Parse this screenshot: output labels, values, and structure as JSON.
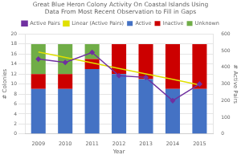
{
  "chart_data": {
    "type": "bar",
    "title": [
      "Great Blue Heron Colony Activity On Coastal Islands Using",
      "Data From Most Recent Observation to Fill in Gaps"
    ],
    "categories": [
      "2009",
      "2010",
      "2011",
      "2012",
      "2013",
      "2014",
      "2015"
    ],
    "series": [
      {
        "name": "Active",
        "type": "bar",
        "color": "#4472c4",
        "values": [
          9,
          9,
          13,
          12,
          11,
          9,
          9
        ]
      },
      {
        "name": "Inactive",
        "type": "bar",
        "color": "#cc0000",
        "values": [
          3,
          3,
          2,
          6,
          7,
          9,
          9
        ]
      },
      {
        "name": "Unknown",
        "type": "bar",
        "color": "#70ad47",
        "values": [
          6,
          6,
          3,
          0,
          0,
          0,
          0
        ]
      },
      {
        "name": "Active Pairs",
        "type": "line",
        "axis": "y2",
        "color": "#7030a0",
        "marker": "diamond",
        "line_style": "solid",
        "values": [
          450,
          430,
          490,
          350,
          340,
          200,
          300
        ]
      },
      {
        "name": "Linear (Active Pairs)",
        "type": "line",
        "axis": "y2",
        "color": "#e0e000",
        "marker": "none",
        "line_style": "solid",
        "values": [
          493,
          460,
          427,
          394,
          361,
          328,
          295
        ]
      }
    ],
    "stacked": true,
    "xlabel": "Year",
    "ylabel": "# Colonies",
    "y2label": "# Active Pairs",
    "ylim": [
      0,
      20
    ],
    "yticks": [
      0,
      2,
      4,
      6,
      8,
      10,
      12,
      14,
      16,
      18,
      20
    ],
    "y2lim": [
      0,
      600
    ],
    "y2ticks": [
      0,
      100,
      200,
      300,
      400,
      500,
      600
    ],
    "grid": true,
    "legend": "top"
  }
}
